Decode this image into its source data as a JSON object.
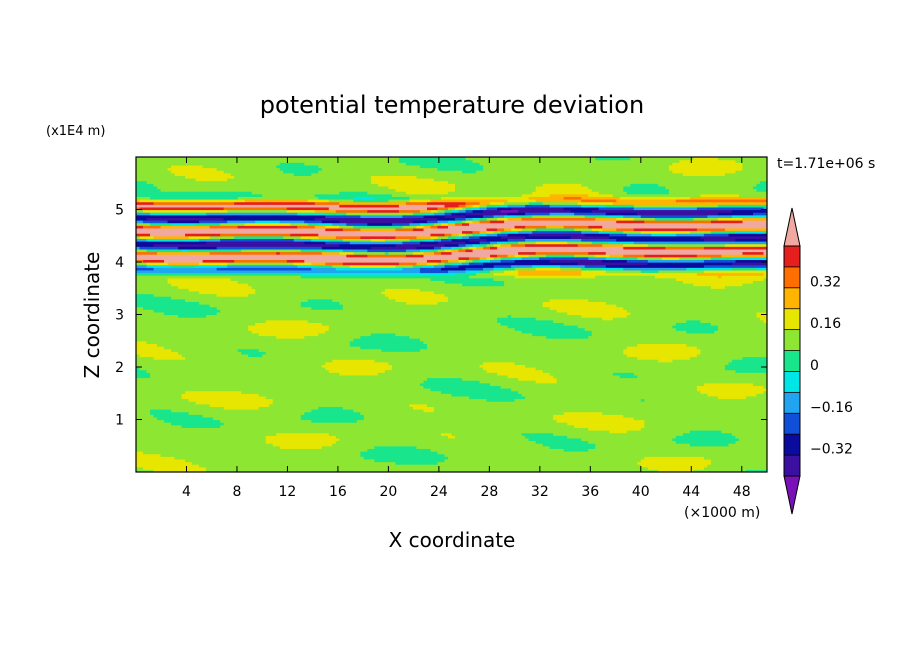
{
  "chart_data": {
    "type": "heatmap",
    "title": "potential temperature deviation",
    "xlabel": "X coordinate",
    "ylabel": "Z coordinate",
    "x_unit": "(×1000 m)",
    "y_unit": "(x1E4 m)",
    "time_label": "t=1.71e+06 s",
    "xlim": [
      0,
      50
    ],
    "ylim": [
      0,
      6
    ],
    "x_ticks": [
      4,
      8,
      12,
      16,
      20,
      24,
      28,
      32,
      36,
      40,
      44,
      48
    ],
    "y_ticks": [
      1,
      2,
      3,
      4,
      5
    ],
    "colorbar": {
      "levels": [
        -0.48,
        -0.4,
        -0.32,
        -0.24,
        -0.16,
        -0.08,
        0,
        0.08,
        0.16,
        0.24,
        0.32,
        0.4,
        0.48
      ],
      "colors": [
        "#7a10b8",
        "#3b0fa0",
        "#0b0b9e",
        "#1050d8",
        "#21a5f0",
        "#00e6e6",
        "#19e68c",
        "#8ce632",
        "#e6e600",
        "#ffb400",
        "#ff6e00",
        "#e61e1e",
        "#f0a8a0"
      ],
      "extend": "both",
      "tick_values": [
        0.32,
        0.16,
        0,
        -0.16,
        -0.32
      ],
      "tick_labels": [
        "0.32",
        "0.16",
        "0",
        "−0.16",
        "−0.32"
      ]
    },
    "field_summary": {
      "background_value": 0.04,
      "strong_band_z_range": [
        3.8,
        5.2
      ],
      "strong_band_amplitude": 0.48
    }
  }
}
